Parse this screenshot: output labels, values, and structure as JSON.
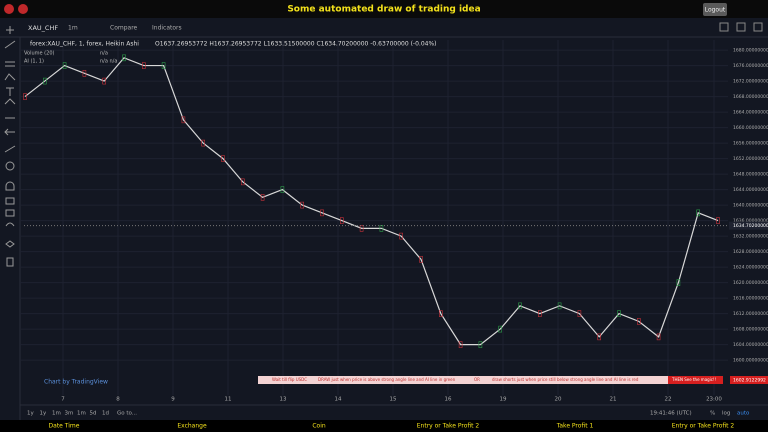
{
  "header": {
    "title": "Some automated draw of trading idea",
    "logout": "Logout"
  },
  "toolbar": {
    "symbol": "XAU_CHF",
    "interval": "1m",
    "compare": "Compare",
    "indicators": "Indicators"
  },
  "chart_data": {
    "type": "line",
    "title": "forex:XAU_CHF, 1, forex, Heikin Ashi",
    "ohlc": "O1637.26953772  H1637.26953772  L1633.51500000  C1634.70200000  -0.63700000 (-0.04%)",
    "studies": [
      {
        "name": "Volume (20)",
        "value": "n/a"
      },
      {
        "name": "AI (1, 1)",
        "value": "n/a  n/a"
      }
    ],
    "values": [
      1668,
      1672,
      1676,
      1674,
      1672,
      1678,
      1676,
      1676,
      1662,
      1656,
      1652,
      1646,
      1642,
      1644,
      1640,
      1638,
      1636,
      1634,
      1634,
      1632,
      1626,
      1612,
      1604,
      1604,
      1608,
      1614,
      1612,
      1614,
      1612,
      1606,
      1612,
      1610,
      1606,
      1620,
      1638,
      1636
    ],
    "color": "#d8d8d8",
    "ylim": [
      1591,
      1682.6
    ],
    "yticks": [
      {
        "value": 1600,
        "label": "1600.00000000"
      },
      {
        "value": 1604,
        "label": "1604.00000000"
      },
      {
        "value": 1608,
        "label": "1608.00000000"
      },
      {
        "value": 1612,
        "label": "1612.00000000"
      },
      {
        "value": 1616,
        "label": "1616.00000000"
      },
      {
        "value": 1620,
        "label": "1620.00000000"
      },
      {
        "value": 1624,
        "label": "1624.00000000"
      },
      {
        "value": 1628,
        "label": "1628.00000000"
      },
      {
        "value": 1632,
        "label": "1632.00000000"
      },
      {
        "value": 1636,
        "label": "1636.00000000"
      },
      {
        "value": 1640,
        "label": "1640.00000000"
      },
      {
        "value": 1644,
        "label": "1644.00000000"
      },
      {
        "value": 1648,
        "label": "1648.00000000"
      },
      {
        "value": 1652,
        "label": "1652.00000000"
      },
      {
        "value": 1656,
        "label": "1656.00000000"
      },
      {
        "value": 1660,
        "label": "1660.00000000"
      },
      {
        "value": 1664,
        "label": "1664.00000000"
      },
      {
        "value": 1668,
        "label": "1668.00000000"
      },
      {
        "value": 1672,
        "label": "1672.00000000"
      },
      {
        "value": 1676,
        "label": "1676.00000000"
      },
      {
        "value": 1680,
        "label": "1680.00000000"
      }
    ],
    "last_price": {
      "value": 1634.702,
      "label": "1634.70200000"
    },
    "grid": true,
    "xtick_labels": [
      "7",
      "8",
      "9",
      "11",
      "13",
      "14",
      "15",
      "16",
      "19",
      "20",
      "21",
      "22",
      "23:00"
    ],
    "annotations": [
      "Wait till flip USDC",
      "DRAW just when price is above strong angle line and AI line in green",
      "OR",
      "draw shorts just when price still below strong angle line and AI line is red",
      "THEN See the magic!!"
    ],
    "annotation_price": "1602.9122992",
    "watermark": "Chart by TradingView"
  },
  "bottom_bar": {
    "ranges": [
      "1y",
      "1y",
      "1m",
      "3m",
      "1m",
      "5d",
      "1d"
    ],
    "goto": "Go to...",
    "time": "19:41:46 (UTC)",
    "options": [
      "%",
      "log",
      "auto"
    ]
  },
  "footer": [
    "Date Time",
    "Exchange",
    "Coin",
    "Entry or Take Profit 2",
    "Take Profit 1",
    "Entry or Take Profit 2"
  ]
}
